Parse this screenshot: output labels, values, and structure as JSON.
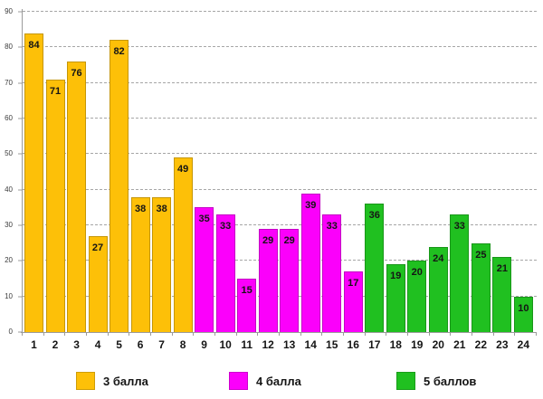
{
  "chart_data": {
    "type": "bar",
    "title": "",
    "xlabel": "",
    "ylabel": "",
    "ylim": [
      0,
      90
    ],
    "y_ticks": [
      0,
      10,
      20,
      30,
      40,
      50,
      60,
      70,
      80,
      90
    ],
    "grid": "horizontal-dashed",
    "legend_position": "bottom",
    "axis_color": "#9b9b9b",
    "gridline_color": "#a6a6a6",
    "series": [
      {
        "name": "3 балла",
        "color": "#FDC008",
        "categories": [
          "1",
          "2",
          "3",
          "4",
          "5",
          "6",
          "7",
          "8"
        ],
        "values": [
          84,
          71,
          76,
          27,
          82,
          38,
          38,
          49
        ]
      },
      {
        "name": "4 балла",
        "color": "#FB00FB",
        "categories": [
          "9",
          "10",
          "11",
          "12",
          "13",
          "14",
          "15",
          "16"
        ],
        "values": [
          35,
          33,
          15,
          29,
          29,
          39,
          33,
          17
        ]
      },
      {
        "name": "5 баллов",
        "color": "#20C020",
        "categories": [
          "17",
          "18",
          "19",
          "20",
          "21",
          "22",
          "23",
          "24"
        ],
        "values": [
          36,
          19,
          20,
          24,
          33,
          25,
          21,
          10
        ]
      }
    ]
  }
}
